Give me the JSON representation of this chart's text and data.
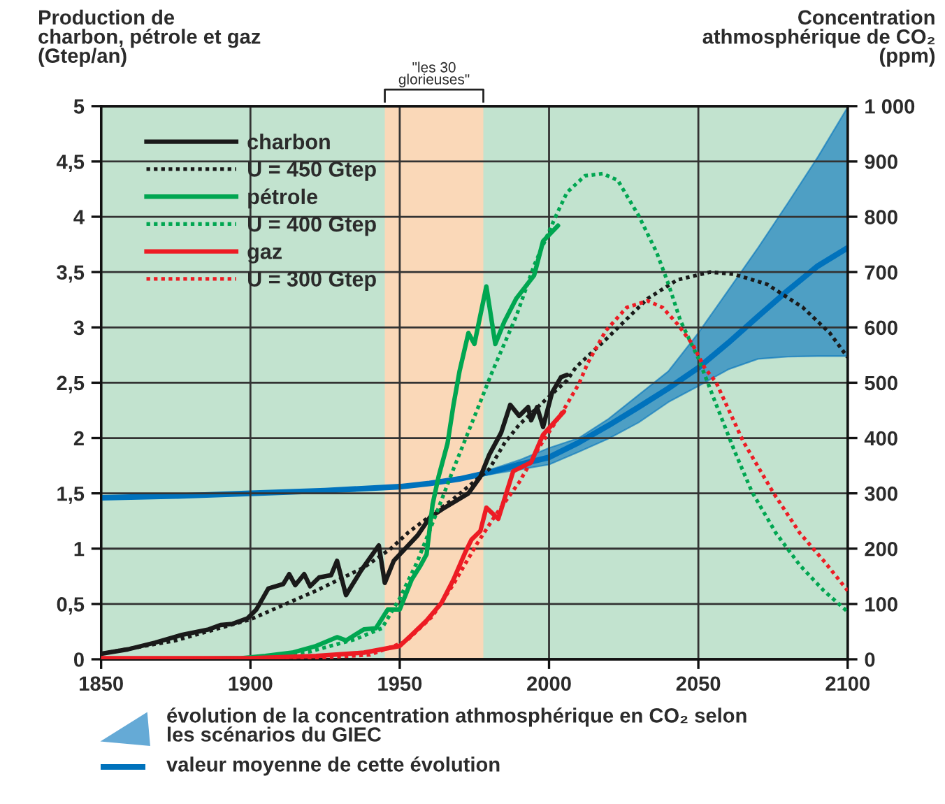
{
  "chart_data": {
    "type": "line",
    "ylabel": "Production de\ncharbon, pétrole et gaz\n(Gtep/an)",
    "y2label": "Concentration\nathmosphérique de CO₂\n(ppm)",
    "xlim": [
      1850,
      2100
    ],
    "xticks": [
      1850,
      1900,
      1950,
      2000,
      2050,
      2100
    ],
    "ylim": [
      0,
      5
    ],
    "yticks": [
      0,
      {
        "value": 0.5,
        "label": "0,5"
      },
      1,
      {
        "value": 1.5,
        "label": "1,5"
      },
      2,
      {
        "value": 2.5,
        "label": "2,5"
      },
      3,
      {
        "value": 3.5,
        "label": "3,5"
      },
      4,
      {
        "value": 4.5,
        "label": "4,5"
      },
      5
    ],
    "y2lim": [
      0,
      1000
    ],
    "y2ticks": [
      0,
      100,
      200,
      300,
      400,
      500,
      600,
      700,
      800,
      900,
      {
        "value": 1000,
        "label": "1 000"
      }
    ],
    "grid": true,
    "legend": "top left",
    "bands": [
      {
        "axis": "x",
        "from": 1850,
        "to": 2100,
        "color": "#c2e3cf"
      },
      {
        "axis": "x",
        "from": 1945,
        "to": 1978,
        "label": "\"les 30\nglorieuses\"",
        "color": "#fad8b8"
      }
    ],
    "annotations": [
      "évolution de la concentration athmosphérique en CO₂ selon\nles scénarios du GIEC",
      "valeur moyenne de cette évolution"
    ],
    "series": [
      {
        "name": "charbon",
        "line_style": "solid",
        "color": "#1a1a1a",
        "x": [
          1850,
          1859,
          1868,
          1877,
          1886,
          1890,
          1894,
          1899,
          1902,
          1906,
          1911,
          1913,
          1915,
          1918,
          1920,
          1923,
          1927,
          1929,
          1932,
          1937,
          1943,
          1945,
          1948,
          1956,
          1960,
          1965,
          1973,
          1977,
          1980,
          1984,
          1987,
          1990,
          1993,
          1994,
          1996,
          1998,
          2001,
          2004,
          2006
        ],
        "values": [
          0.05,
          0.09,
          0.15,
          0.22,
          0.27,
          0.31,
          0.32,
          0.37,
          0.45,
          0.64,
          0.68,
          0.77,
          0.67,
          0.77,
          0.66,
          0.74,
          0.76,
          0.89,
          0.58,
          0.8,
          1.03,
          0.69,
          0.89,
          1.12,
          1.28,
          1.37,
          1.5,
          1.65,
          1.85,
          2.05,
          2.3,
          2.2,
          2.28,
          2.16,
          2.28,
          2.1,
          2.41,
          2.55,
          2.57
        ]
      },
      {
        "name": "U = 450 Gtep",
        "line_style": "dotted",
        "color": "#1a1a1a",
        "x": [
          1850,
          1875,
          1900,
          1922,
          1938,
          1947,
          1953,
          1968,
          1980,
          1985,
          1990,
          1999,
          2006,
          2009,
          2019,
          2033,
          2043,
          2054,
          2062,
          2073,
          2085,
          2094,
          2100
        ],
        "values": [
          0.05,
          0.17,
          0.36,
          0.62,
          0.83,
          1.0,
          1.15,
          1.45,
          1.72,
          1.95,
          2.12,
          2.35,
          2.52,
          2.64,
          2.89,
          3.26,
          3.43,
          3.5,
          3.48,
          3.39,
          3.18,
          2.95,
          2.73
        ]
      },
      {
        "name": "pétrole",
        "line_style": "solid",
        "color": "#00a651",
        "x": [
          1870,
          1897,
          1905,
          1914,
          1922,
          1929,
          1932,
          1938,
          1942,
          1946,
          1950,
          1954,
          1957,
          1959,
          1961,
          1963,
          1966,
          1968,
          1970,
          1973,
          1975,
          1979,
          1982,
          1985,
          1989,
          1995,
          1998,
          2003
        ],
        "values": [
          0.0,
          0.01,
          0.03,
          0.06,
          0.12,
          0.2,
          0.17,
          0.27,
          0.28,
          0.45,
          0.45,
          0.72,
          0.85,
          0.95,
          1.4,
          1.65,
          1.95,
          2.3,
          2.6,
          2.95,
          2.85,
          3.37,
          2.85,
          3.05,
          3.26,
          3.47,
          3.78,
          3.92
        ]
      },
      {
        "name": "U = 400 Gtep",
        "line_style": "dotted",
        "color": "#00a651",
        "x": [
          1870,
          1900,
          1920,
          1935,
          1944,
          1950,
          1956,
          1962,
          1968,
          1976,
          1981,
          1989,
          1995,
          2002,
          2006,
          2012,
          2018,
          2023,
          2030,
          2036,
          2040,
          2044,
          2050,
          2056,
          2062,
          2068,
          2076,
          2084,
          2092,
          2100
        ],
        "values": [
          0.0,
          0.01,
          0.07,
          0.18,
          0.28,
          0.55,
          0.89,
          1.3,
          1.72,
          2.26,
          2.6,
          3.1,
          3.56,
          3.99,
          4.22,
          4.37,
          4.39,
          4.33,
          4.01,
          3.68,
          3.39,
          3.06,
          2.72,
          2.3,
          1.89,
          1.51,
          1.14,
          0.85,
          0.62,
          0.43
        ]
      },
      {
        "name": "gaz",
        "line_style": "solid",
        "color": "#ed1c24",
        "x": [
          1850,
          1900,
          1922,
          1938,
          1950,
          1954,
          1959,
          1964,
          1968,
          1972,
          1974,
          1977,
          1979,
          1983,
          1988,
          1994,
          1998,
          2005
        ],
        "values": [
          0.01,
          0.01,
          0.03,
          0.06,
          0.12,
          0.22,
          0.35,
          0.51,
          0.72,
          0.97,
          1.08,
          1.16,
          1.37,
          1.27,
          1.7,
          1.78,
          2.03,
          2.24
        ]
      },
      {
        "name": "U = 300 Gtep",
        "line_style": "dotted",
        "color": "#ed1c24",
        "x": [
          1850,
          1920,
          1940,
          1952,
          1961,
          1968,
          1976,
          1982,
          1990,
          1997,
          2005,
          2010,
          2013,
          2019,
          2026,
          2033,
          2038,
          2043,
          2048,
          2052,
          2056,
          2065,
          2075,
          2084,
          2092,
          2100
        ],
        "values": [
          0.0,
          0.01,
          0.04,
          0.16,
          0.39,
          0.68,
          1.05,
          1.3,
          1.6,
          1.93,
          2.26,
          2.49,
          2.68,
          2.97,
          3.18,
          3.24,
          3.18,
          3.03,
          2.85,
          2.64,
          2.5,
          1.97,
          1.51,
          1.14,
          0.89,
          0.62
        ]
      },
      {
        "axis": "y2",
        "line_style": "solid",
        "color": "#0072bc",
        "x": [
          1850,
          1875,
          1900,
          1925,
          1950,
          1960,
          1970,
          1980,
          1990,
          2000,
          2010,
          2020,
          2030,
          2040,
          2050,
          2060,
          2070,
          2080,
          2090,
          2100
        ],
        "values": [
          292,
          295,
          300,
          305,
          312,
          318,
          326,
          338,
          352,
          365,
          392,
          423,
          456,
          490,
          527,
          572,
          620,
          667,
          711,
          744
        ],
        "lower": [
          null,
          null,
          null,
          null,
          null,
          318,
          324,
          334,
          343,
          352,
          375,
          399,
          428,
          465,
          494,
          524,
          543,
          547,
          548,
          548
        ],
        "upper": [
          null,
          null,
          null,
          null,
          null,
          318,
          328,
          342,
          360,
          382,
          400,
          435,
          478,
          521,
          590,
          667,
          744,
          825,
          908,
          998
        ]
      }
    ]
  }
}
